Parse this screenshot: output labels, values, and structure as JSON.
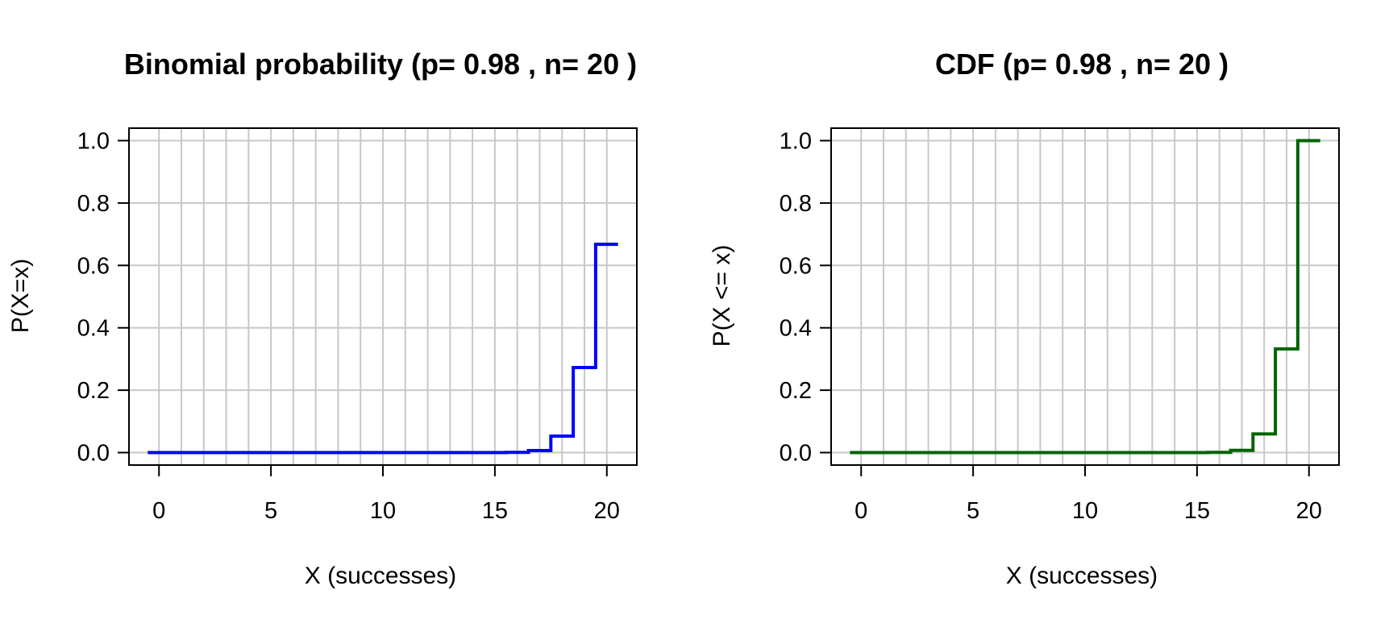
{
  "chart_data": [
    {
      "type": "line",
      "step": true,
      "title": "Binomial probability (p= 0.98 , n= 20 )",
      "xlabel": "X (successes)",
      "ylabel": "P(X=x)",
      "xlim": [
        -0.5,
        20.5
      ],
      "ylim": [
        0,
        1
      ],
      "xticks": [
        0,
        5,
        10,
        15,
        20
      ],
      "yticks": [
        0.0,
        0.2,
        0.4,
        0.6,
        0.8,
        1.0
      ],
      "ytick_labels": [
        "0.0",
        "0.2",
        "0.4",
        "0.6",
        "0.8",
        "1.0"
      ],
      "grid": true,
      "color": "#0000ff",
      "x": [
        0,
        1,
        2,
        3,
        4,
        5,
        6,
        7,
        8,
        9,
        10,
        11,
        12,
        13,
        14,
        15,
        16,
        17,
        18,
        19,
        20
      ],
      "y": [
        0,
        0,
        0,
        0,
        0,
        0,
        0,
        0,
        0,
        0,
        0,
        0,
        0,
        0,
        0,
        0,
        0.0006,
        0.0065,
        0.0528,
        0.2725,
        0.6676
      ]
    },
    {
      "type": "line",
      "step": true,
      "title": "CDF (p= 0.98 , n= 20 )",
      "xlabel": "X (successes)",
      "ylabel": "P(X <= x)",
      "xlim": [
        -0.5,
        20.5
      ],
      "ylim": [
        0,
        1
      ],
      "xticks": [
        0,
        5,
        10,
        15,
        20
      ],
      "yticks": [
        0.0,
        0.2,
        0.4,
        0.6,
        0.8,
        1.0
      ],
      "ytick_labels": [
        "0.0",
        "0.2",
        "0.4",
        "0.6",
        "0.8",
        "1.0"
      ],
      "grid": true,
      "color": "#006400",
      "x": [
        0,
        1,
        2,
        3,
        4,
        5,
        6,
        7,
        8,
        9,
        10,
        11,
        12,
        13,
        14,
        15,
        16,
        17,
        18,
        19,
        20
      ],
      "y": [
        0,
        0,
        0,
        0,
        0,
        0,
        0,
        0,
        0,
        0,
        0,
        0,
        0,
        0,
        0,
        0,
        0.0006,
        0.0071,
        0.0599,
        0.3324,
        1.0
      ]
    }
  ]
}
